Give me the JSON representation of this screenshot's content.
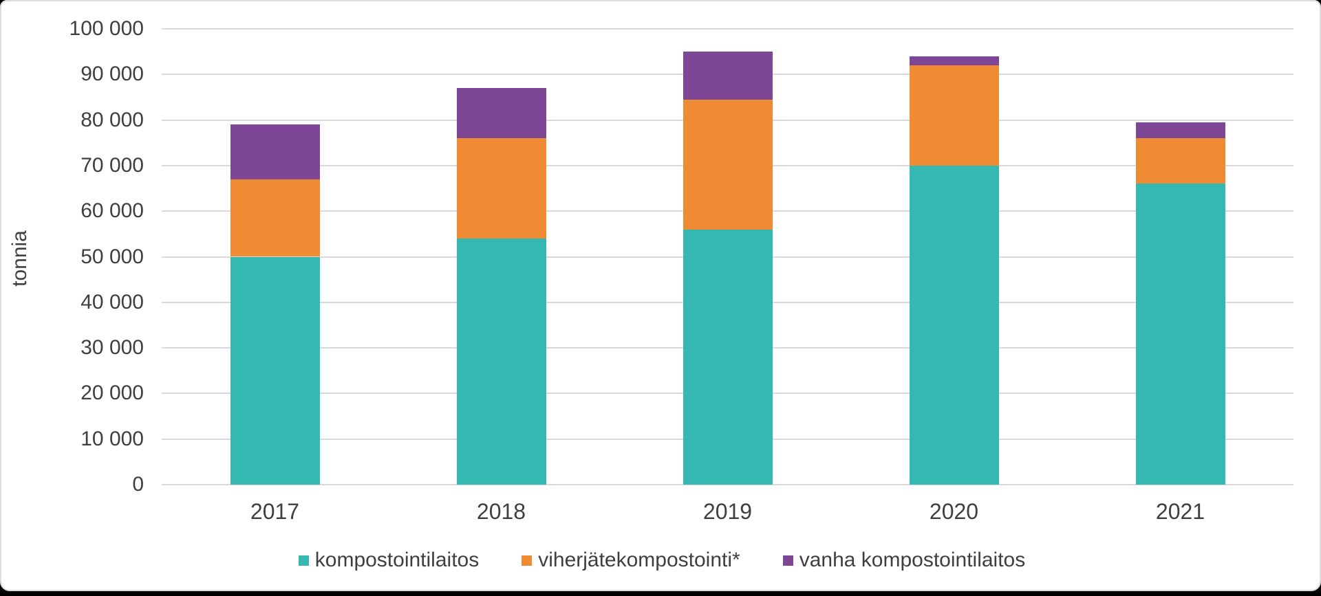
{
  "chart_data": {
    "type": "bar",
    "stacked": true,
    "title": "",
    "xlabel": "",
    "ylabel": "tonnia",
    "categories": [
      "2017",
      "2018",
      "2019",
      "2020",
      "2021"
    ],
    "series": [
      {
        "name": "kompostointilaitos",
        "color": "#35b8b1",
        "values": [
          50000,
          54000,
          56000,
          70000,
          66000
        ]
      },
      {
        "name": "viherjätekompostointi*",
        "color": "#ef8b33",
        "values": [
          17000,
          22000,
          28500,
          22000,
          10000
        ]
      },
      {
        "name": "vanha kompostointilaitos",
        "color": "#7d4795",
        "values": [
          12000,
          11000,
          10500,
          2000,
          3500
        ]
      }
    ],
    "totals": [
      79000,
      87000,
      95000,
      94000,
      79500
    ],
    "ylim": [
      0,
      100000
    ],
    "ytick_step": 10000,
    "ytick_labels": [
      "0",
      "10 000",
      "20 000",
      "30 000",
      "40 000",
      "50 000",
      "60 000",
      "70 000",
      "80 000",
      "90 000",
      "100 000"
    ],
    "grid": true,
    "gridline_color": "#d9d9d9",
    "text_color": "#3f3f3f",
    "legend_position": "bottom"
  }
}
